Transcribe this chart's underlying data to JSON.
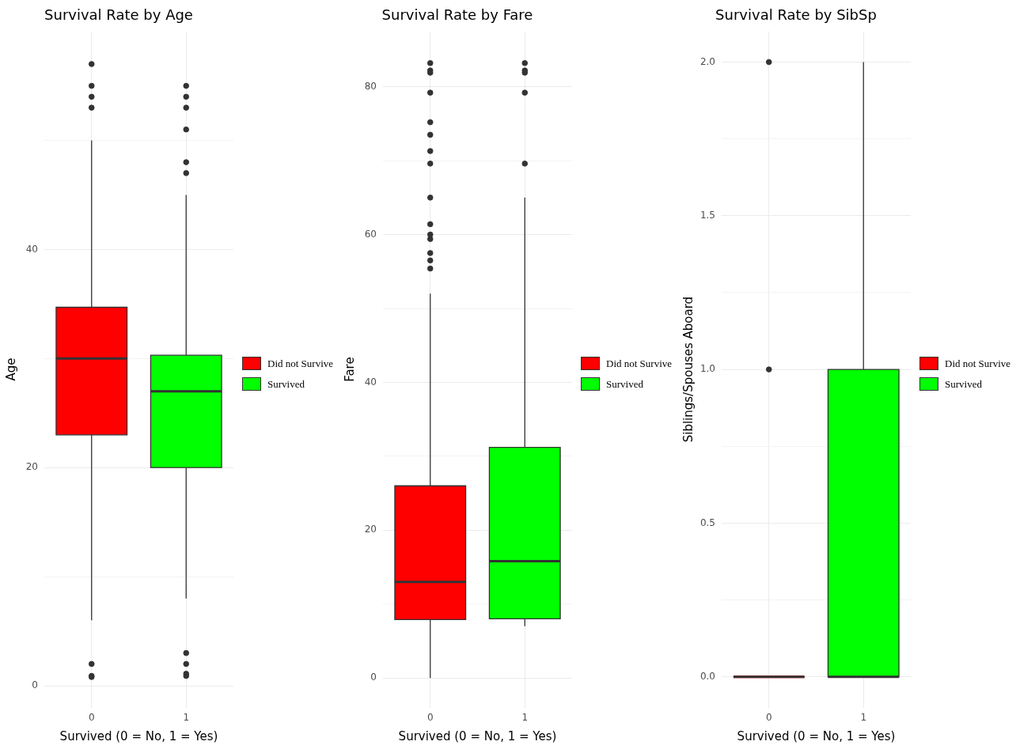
{
  "chart_data": [
    {
      "type": "box",
      "title": "Survival Rate by Age",
      "xlabel": "Survived (0 = No, 1 = Yes)",
      "ylabel": "Age",
      "categories": [
        "0",
        "1"
      ],
      "series": [
        {
          "name": "Did not Survive",
          "color": "#ff0000",
          "boxes": [
            {
              "low": 6,
              "q1": 23,
              "median": 30,
              "q3": 34.7,
              "high": 50,
              "outliers": [
                57,
                55,
                54,
                53,
                2,
                0.9,
                0.8
              ]
            },
            null
          ]
        },
        {
          "name": "Survived",
          "color": "#00ff00",
          "boxes": [
            null,
            {
              "low": 8,
              "q1": 20,
              "median": 27,
              "q3": 30.3,
              "high": 45,
              "outliers": [
                55,
                54,
                53,
                51,
                48,
                47,
                3,
                2,
                1.1,
                0.9
              ]
            }
          ]
        }
      ],
      "ylim": [
        -2,
        60
      ],
      "yticks": [
        0,
        {
          "value": 10,
          "label": null
        },
        20,
        {
          "value": 30,
          "label": null
        },
        40,
        {
          "value": 50,
          "label": null
        }
      ],
      "grid": true,
      "legend": "right",
      "marker": "circle"
    },
    {
      "type": "box",
      "title": "Survival Rate by Fare",
      "xlabel": "Survived (0 = No, 1 = Yes)",
      "ylabel": "Fare",
      "categories": [
        "0",
        "1"
      ],
      "series": [
        {
          "name": "Did not Survive",
          "color": "#ff0000",
          "boxes": [
            {
              "low": 0,
              "q1": 7.9,
              "median": 13,
              "q3": 26,
              "high": 52,
              "outliers": [
                83.2,
                82.2,
                81.9,
                79.2,
                75.2,
                73.5,
                71.3,
                69.6,
                65,
                61.4,
                60,
                59.4,
                57.5,
                56.5,
                55.4
              ]
            },
            null
          ]
        },
        {
          "name": "Survived",
          "color": "#00ff00",
          "boxes": [
            null,
            {
              "low": 7,
              "q1": 8,
              "median": 15.8,
              "q3": 31.2,
              "high": 65,
              "outliers": [
                83.2,
                82.2,
                81.9,
                79.2,
                69.6
              ]
            }
          ]
        }
      ],
      "ylim": [
        -4,
        87.5
      ],
      "yticks": [
        0,
        {
          "value": 10,
          "label": null
        },
        20,
        {
          "value": 30,
          "label": null
        },
        40,
        {
          "value": 50,
          "label": null
        },
        60,
        {
          "value": 70,
          "label": null
        },
        80
      ],
      "grid": true,
      "legend": "right",
      "marker": "circle"
    },
    {
      "type": "box",
      "title": "Survival Rate by SibSp",
      "xlabel": "Survived (0 = No, 1 = Yes)",
      "ylabel": "Siblings/Spouses Aboard",
      "categories": [
        "0",
        "1"
      ],
      "series": [
        {
          "name": "Did not Survive",
          "color": "#ff0000",
          "boxes": [
            {
              "low": 0,
              "q1": 0,
              "median": 0,
              "q3": 0,
              "high": 0,
              "outliers": [
                2,
                1
              ]
            },
            null
          ]
        },
        {
          "name": "Survived",
          "color": "#00ff00",
          "boxes": [
            null,
            {
              "low": 0,
              "q1": 0,
              "median": 0,
              "q3": 1,
              "high": 2
            }
          ]
        }
      ],
      "ylim": [
        -0.1,
        2.1
      ],
      "yticks": [
        {
          "value": 0,
          "label": "0.0"
        },
        {
          "value": 0.25,
          "label": null
        },
        {
          "value": 0.5,
          "label": "0.5"
        },
        {
          "value": 0.75,
          "label": null
        },
        {
          "value": 1,
          "label": "1.0"
        },
        {
          "value": 1.25,
          "label": null
        },
        {
          "value": 1.5,
          "label": "1.5"
        },
        {
          "value": 1.75,
          "label": null
        },
        {
          "value": 2,
          "label": "2.0"
        }
      ],
      "grid": true,
      "legend": "right",
      "marker": "circle"
    }
  ]
}
